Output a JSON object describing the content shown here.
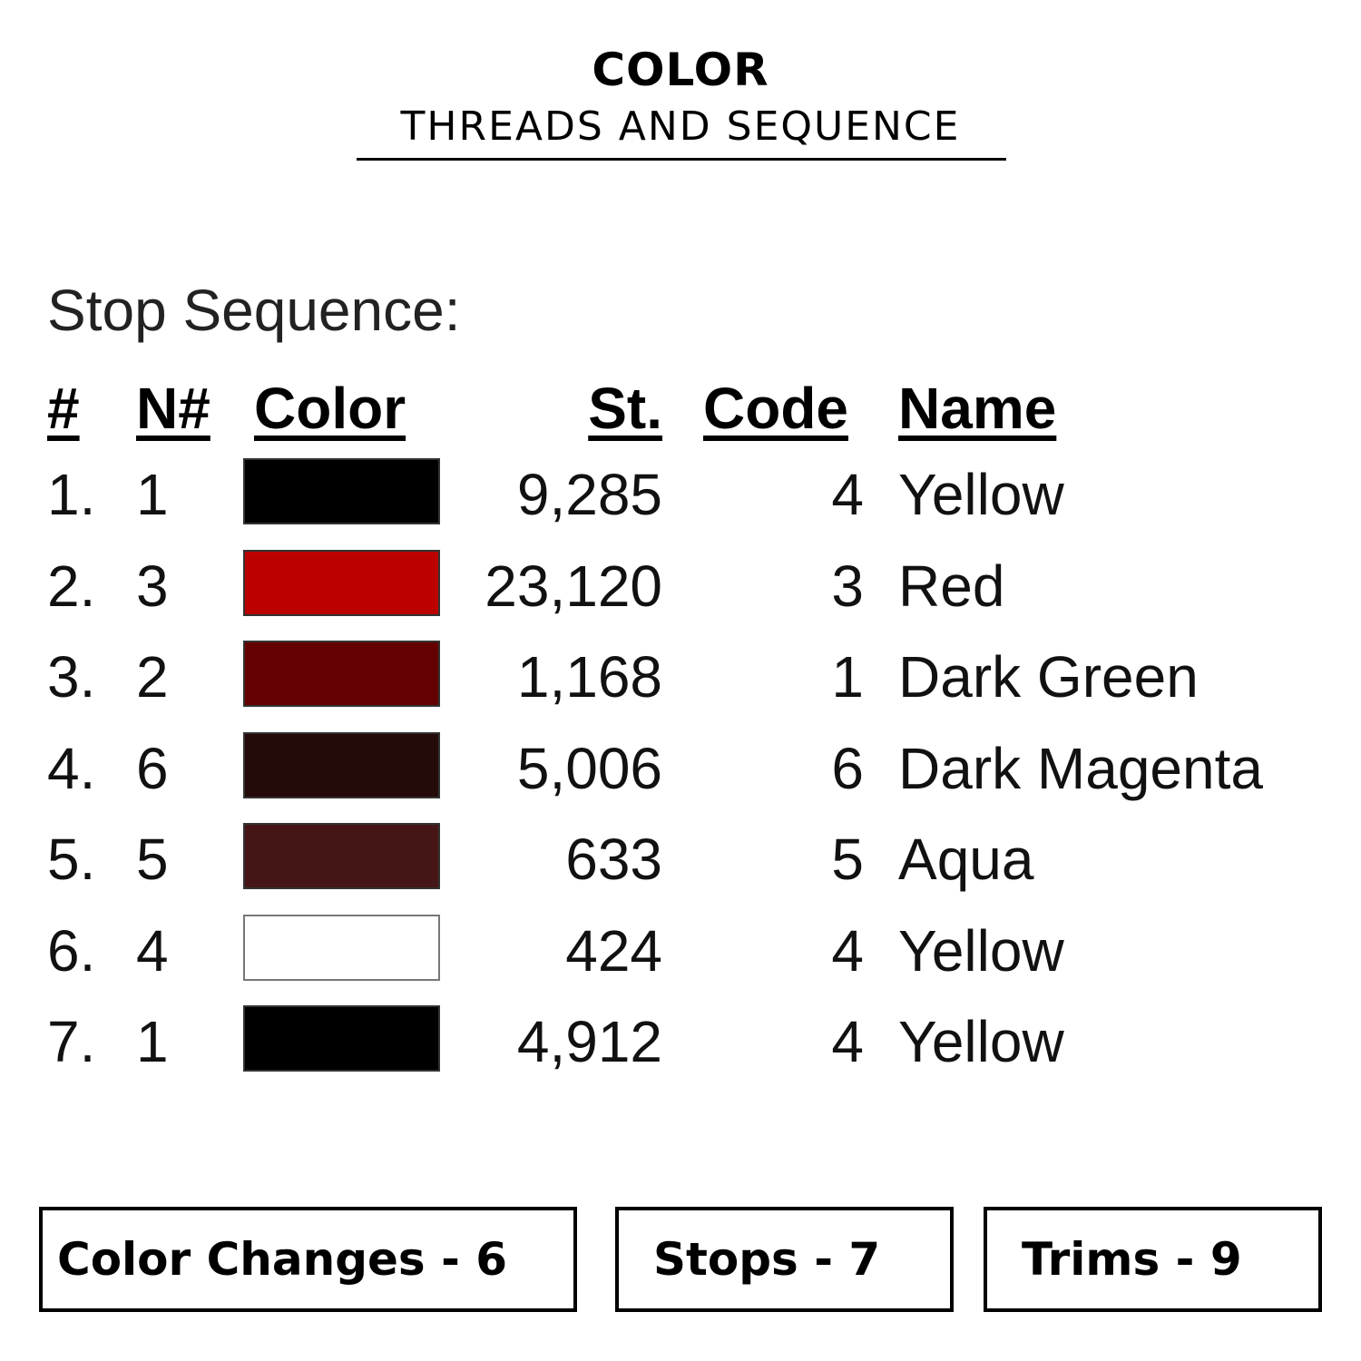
{
  "header": {
    "title": "COLOR",
    "subtitle": "THREADS AND SEQUENCE"
  },
  "section_title": "Stop Sequence:",
  "table": {
    "columns": [
      "#",
      "N#",
      "Color",
      "St.",
      "Code",
      "Name"
    ],
    "rows": [
      {
        "num": "1.",
        "n": "1",
        "color": "#000000",
        "st": "9,285",
        "code": "4",
        "name": "Yellow"
      },
      {
        "num": "2.",
        "n": "3",
        "color": "#bb0000",
        "st": "23,120",
        "code": "3",
        "name": "Red"
      },
      {
        "num": "3.",
        "n": "2",
        "color": "#650000",
        "st": "1,168",
        "code": "1",
        "name": "Dark Green"
      },
      {
        "num": "4.",
        "n": "6",
        "color": "#250a0a",
        "st": "5,006",
        "code": "6",
        "name": "Dark Magenta"
      },
      {
        "num": "5.",
        "n": "5",
        "color": "#461616",
        "st": "633",
        "code": "5",
        "name": "Aqua"
      },
      {
        "num": "6.",
        "n": "4",
        "color": "#ffffff",
        "st": "424",
        "code": "4",
        "name": "Yellow"
      },
      {
        "num": "7.",
        "n": "1",
        "color": "#000000",
        "st": "4,912",
        "code": "4",
        "name": "Yellow"
      }
    ]
  },
  "summary": {
    "color_changes": "Color Changes - 6",
    "stops": "Stops - 7",
    "trims": "Trims - 9"
  }
}
